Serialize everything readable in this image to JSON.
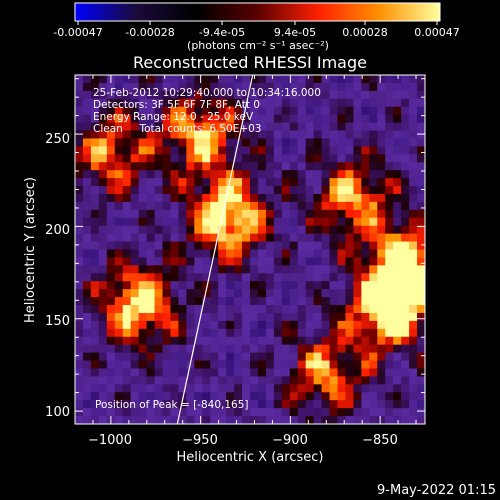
{
  "colorbar": {
    "ticks": [
      "-0.00047",
      "-0.00028",
      "-9.4e-05",
      "9.4e-05",
      "0.00028",
      "0.00047"
    ],
    "unit_label": "(photons cm⁻² s⁻¹ asec⁻²)",
    "range": [
      -0.00047,
      0.00047
    ],
    "colormap": [
      "#0000ff",
      "#1a0a3a",
      "#000000",
      "#5a0000",
      "#ff2000",
      "#ff9000",
      "#ffffa0"
    ]
  },
  "chart_data": {
    "type": "heatmap",
    "title": "Reconstructed RHESSI Image",
    "xlabel": "Heliocentric X (arcsec)",
    "ylabel": "Heliocentric Y (arcsec)",
    "xlim": [
      -1020,
      -825
    ],
    "ylim": [
      93,
      282
    ],
    "x_ticks": [
      -1000,
      -950,
      -900,
      -850
    ],
    "y_ticks": [
      100,
      150,
      200,
      250
    ],
    "x_tick_labels": [
      "−1000",
      "−950",
      "−900",
      "−850"
    ],
    "y_tick_labels": [
      "100",
      "150",
      "200",
      "250"
    ],
    "limb_line": [
      [
        -963,
        93
      ],
      [
        -921,
        282
      ]
    ],
    "bright_regions": [
      {
        "x": -935,
        "y": 205,
        "intensity": 1.0
      },
      {
        "x": -985,
        "y": 158,
        "intensity": 0.95
      },
      {
        "x": -845,
        "y": 155,
        "intensity": 1.0
      },
      {
        "x": -835,
        "y": 180,
        "intensity": 0.9
      },
      {
        "x": -950,
        "y": 250,
        "intensity": 0.8
      },
      {
        "x": -1000,
        "y": 240,
        "intensity": 0.7
      },
      {
        "x": -880,
        "y": 120,
        "intensity": 0.7
      },
      {
        "x": -865,
        "y": 215,
        "intensity": 0.75
      }
    ],
    "annotations": [
      "25-Feb-2012 10:29:40.000 to 10:34:16.000",
      "Detectors: 3F 5F 6F 7F 8F, Att 0",
      "Energy Range: 12.0 - 25.0 keV",
      "Clean     Total counts: 6.50E+03"
    ],
    "peak_label": "Position of Peak = [-840,165]"
  },
  "footer": {
    "timestamp": "9-May-2022 01:15"
  }
}
